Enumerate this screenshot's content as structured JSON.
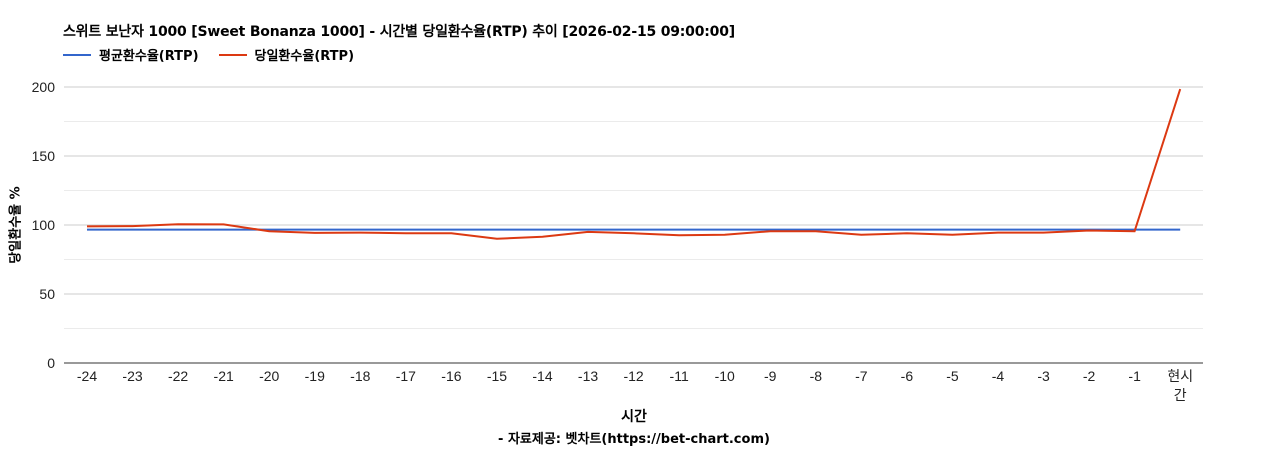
{
  "title": "스위트 보난자 1000 [Sweet Bonanza 1000] - 시간별 당일환수율(RTP) 추이 [2026-02-15 09:00:00]",
  "legend": [
    {
      "label": "평균환수율(RTP)",
      "color": "#3366cc"
    },
    {
      "label": "당일환수율(RTP)",
      "color": "#dc3912"
    }
  ],
  "axes": {
    "ylabel": "당일환수율 %",
    "xlabel": "시간",
    "credit": "- 자료제공: 벳차트(https://bet-chart.com)"
  },
  "chart_data": {
    "type": "line",
    "title": "스위트 보난자 1000 [Sweet Bonanza 1000] - 시간별 당일환수율(RTP) 추이 [2026-02-15 09:00:00]",
    "xlabel": "시간",
    "ylabel": "당일환수율 %",
    "ylim": [
      0,
      200
    ],
    "yticks": [
      0,
      50,
      100,
      150,
      200
    ],
    "grid": true,
    "legend_position": "top",
    "categories": [
      "-24",
      "-23",
      "-22",
      "-21",
      "-20",
      "-19",
      "-18",
      "-17",
      "-16",
      "-15",
      "-14",
      "-13",
      "-12",
      "-11",
      "-10",
      "-9",
      "-8",
      "-7",
      "-6",
      "-5",
      "-4",
      "-3",
      "-2",
      "-1",
      "현시간"
    ],
    "series": [
      {
        "name": "평균환수율(RTP)",
        "color": "#3366cc",
        "values": [
          96.7,
          96.7,
          96.7,
          96.7,
          96.7,
          96.7,
          96.7,
          96.7,
          96.7,
          96.7,
          96.7,
          96.7,
          96.7,
          96.7,
          96.7,
          96.7,
          96.7,
          96.7,
          96.7,
          96.7,
          96.7,
          96.7,
          96.7,
          96.7,
          96.7
        ]
      },
      {
        "name": "당일환수율(RTP)",
        "color": "#dc3912",
        "values": [
          99.0,
          99.2,
          100.5,
          100.4,
          95.5,
          94.3,
          94.5,
          94.0,
          94.0,
          90.0,
          91.5,
          95.0,
          94.0,
          92.5,
          93.0,
          95.5,
          95.5,
          93.0,
          94.0,
          93.0,
          94.5,
          94.5,
          96.0,
          95.5,
          198.5
        ]
      }
    ]
  }
}
